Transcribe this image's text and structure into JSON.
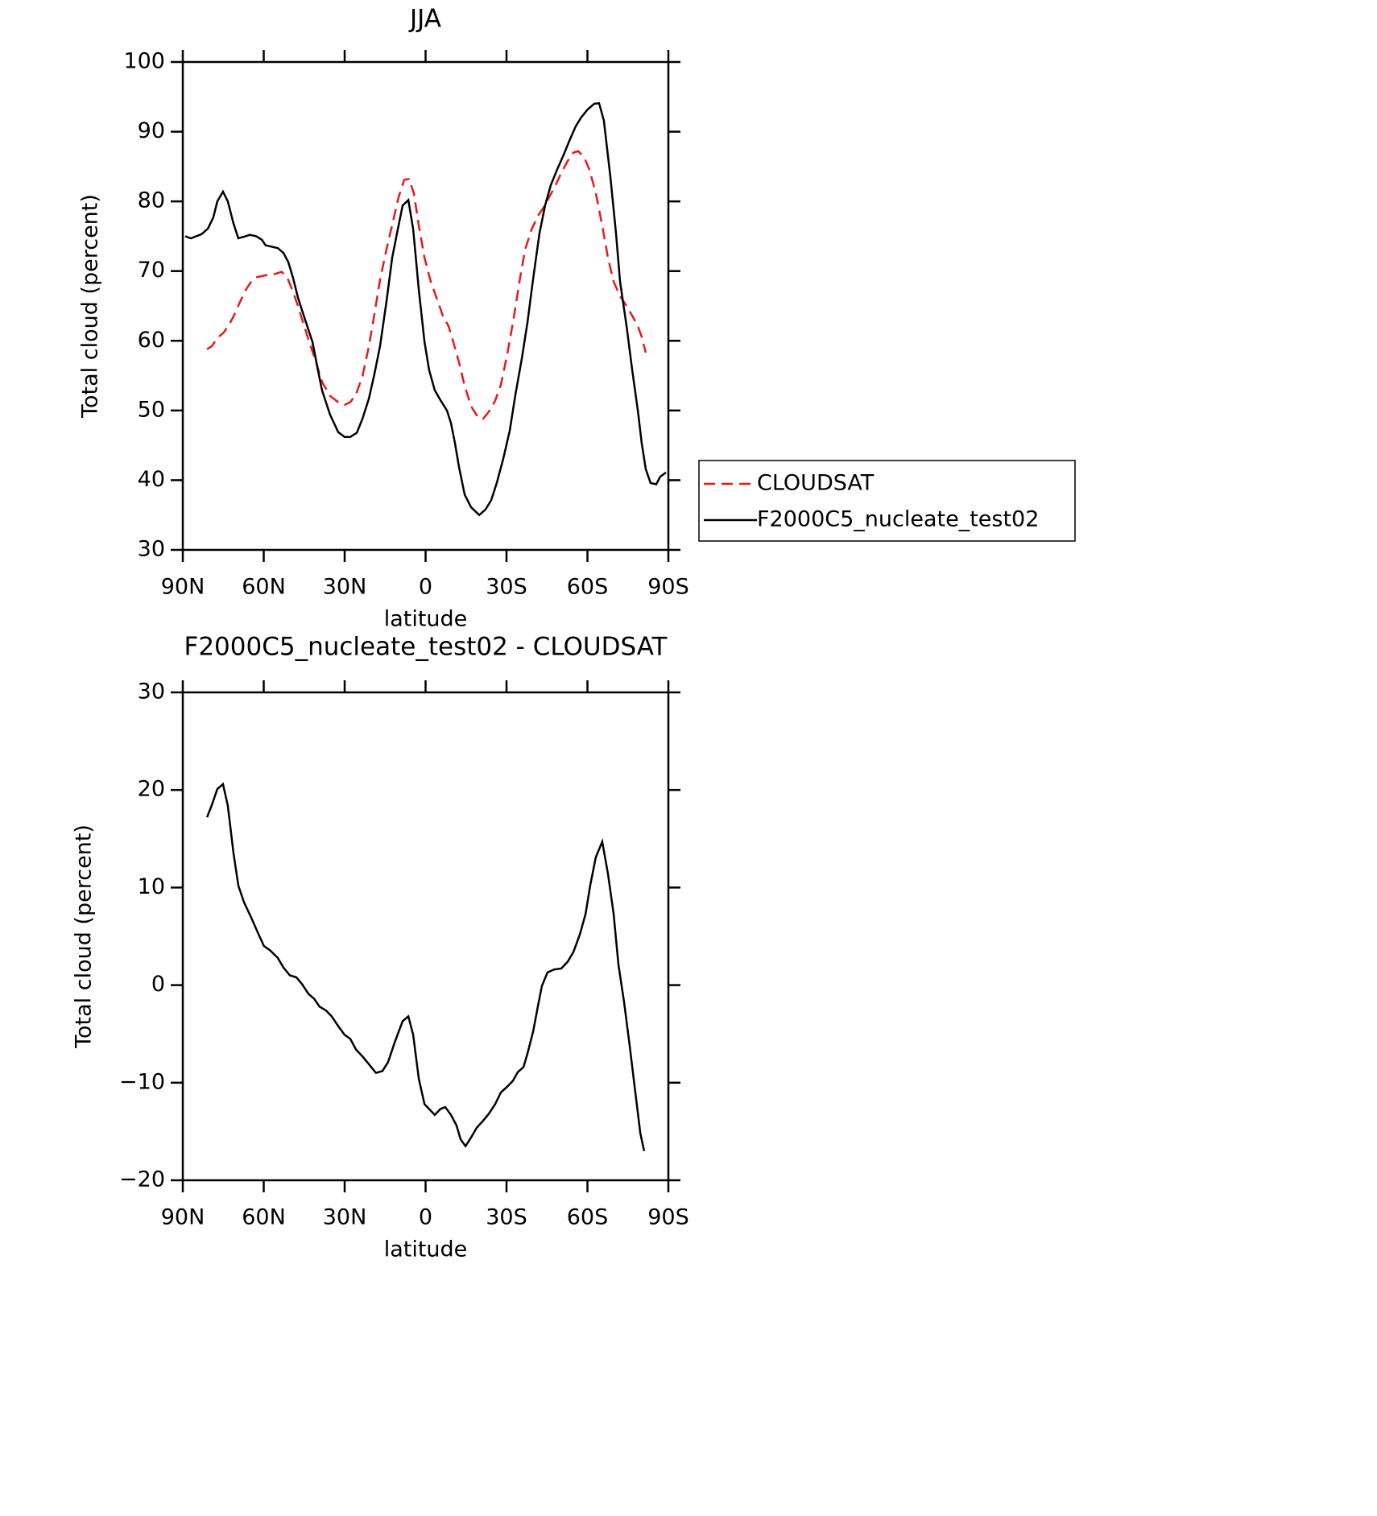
{
  "chart_data": [
    {
      "type": "line",
      "title": "JJA",
      "xlabel": "latitude",
      "ylabel": "Total cloud (percent)",
      "xlim": [
        90,
        -90
      ],
      "xticks": [
        {
          "value": 90,
          "label": "90N"
        },
        {
          "value": 60,
          "label": "60N"
        },
        {
          "value": 30,
          "label": "30N"
        },
        0,
        {
          "value": -30,
          "label": "30S"
        },
        {
          "value": -60,
          "label": "60S"
        },
        {
          "value": -90,
          "label": "90S"
        }
      ],
      "ylim": [
        30,
        100
      ],
      "yticks": [
        30,
        40,
        50,
        60,
        70,
        80,
        90,
        100
      ],
      "legend": "right",
      "series": [
        {
          "name": "CLOUDSAT",
          "color": "#e41a1c",
          "style": "dashed",
          "x": [
            81,
            79.3,
            77.2,
            74.8,
            72.7,
            71.2,
            69.1,
            66.7,
            64.6,
            62.8,
            59.3,
            55.7,
            53.3,
            51.2,
            49.4,
            47.3,
            45.5,
            42.8,
            40.7,
            38.4,
            35.4,
            32.4,
            30,
            27.9,
            25.8,
            23.4,
            21,
            19,
            16.9,
            14.5,
            12.1,
            10,
            7.9,
            6.1,
            4.3,
            2.5,
            0.4,
            -1.9,
            -4.3,
            -6.4,
            -8.5,
            -10.3,
            -12.4,
            -14.5,
            -16.9,
            -19.3,
            -21.3,
            -23.4,
            -25.8,
            -27.9,
            -30.3,
            -32.7,
            -34.8,
            -36.9,
            -39.3,
            -41.6,
            -43.7,
            -45.8,
            -48.2,
            -50.3,
            -52.7,
            -54.8,
            -56.6,
            -58.7,
            -60.7,
            -63.1,
            -65.5,
            -67.6,
            -69.7,
            -72.1,
            -74.5,
            -76.6,
            -78.7,
            -80.1,
            -81.6
          ],
          "values": [
            58.8,
            59.2,
            60.4,
            61.2,
            62.4,
            63.5,
            65.3,
            67.3,
            68.5,
            69.1,
            69.4,
            69.6,
            69.9,
            69,
            67.3,
            65,
            62.7,
            59.5,
            57,
            54.1,
            52.1,
            51.2,
            50.8,
            51.2,
            52.3,
            54.9,
            59.2,
            63.8,
            68.7,
            73.1,
            77.1,
            80.6,
            83.1,
            83.2,
            81.1,
            76.5,
            71.9,
            68.5,
            65.9,
            63.6,
            62.1,
            59.8,
            56.9,
            53.5,
            50.6,
            49.1,
            48.8,
            49.8,
            51.4,
            53.7,
            58.1,
            63.3,
            68.5,
            73.1,
            76,
            77.9,
            79.1,
            80.6,
            82.3,
            84.1,
            85.8,
            87,
            87.2,
            86.4,
            84.6,
            81.2,
            76.5,
            71.9,
            68.5,
            66.4,
            65,
            63.6,
            62.1,
            60.6,
            58.3
          ]
        },
        {
          "name": "F2000C5_nucleate_test02",
          "color": "#000000",
          "style": "solid",
          "x": [
            89.1,
            87,
            83,
            80.7,
            78.7,
            77.2,
            75.1,
            73.3,
            71.2,
            69.4,
            66.7,
            65.2,
            62.8,
            60.7,
            59.3,
            54.8,
            52.7,
            50.9,
            49.1,
            47.3,
            44.9,
            41.9,
            39.9,
            38.4,
            35.4,
            32.4,
            30,
            27.9,
            25.5,
            23.4,
            21,
            19,
            16.9,
            14.5,
            12.4,
            10.3,
            8.5,
            6.4,
            4.6,
            2.5,
            0.4,
            -1.3,
            -3.4,
            -5.5,
            -7.9,
            -9.4,
            -10.9,
            -12.4,
            -14.5,
            -16.9,
            -19.9,
            -22.2,
            -24.3,
            -26.4,
            -28.8,
            -31.2,
            -33.3,
            -35.7,
            -37.8,
            -39.9,
            -42.2,
            -44.3,
            -46.4,
            -48.8,
            -51.2,
            -53.3,
            -55.7,
            -57.8,
            -60.1,
            -62.5,
            -64.3,
            -66.1,
            -68.5,
            -70.6,
            -72.1,
            -74.5,
            -76.6,
            -78.7,
            -80.1,
            -81.6,
            -83.4,
            -85.5,
            -87,
            -89.1
          ],
          "values": [
            75,
            74.7,
            75.3,
            76.1,
            77.7,
            80,
            81.4,
            80,
            76.8,
            74.7,
            75,
            75.2,
            75,
            74.5,
            73.7,
            73.3,
            72.6,
            71.3,
            69,
            66.2,
            63.3,
            59.8,
            55.8,
            52.9,
            49.4,
            46.9,
            46.2,
            46.2,
            46.8,
            48.8,
            51.7,
            55.2,
            59.2,
            65.6,
            71.9,
            76,
            79.4,
            80.2,
            76,
            67.3,
            59.8,
            55.8,
            52.9,
            51.5,
            50,
            48.2,
            45.3,
            41.9,
            37.9,
            36.1,
            35,
            35.8,
            37.1,
            39.6,
            43.1,
            47.1,
            52.3,
            57.5,
            62.7,
            69,
            75.4,
            79.4,
            82.3,
            84.6,
            86.7,
            88.7,
            90.8,
            92.1,
            93.2,
            94,
            94.1,
            91.6,
            83.5,
            75.4,
            68.5,
            62.1,
            55.8,
            50,
            45.4,
            41.6,
            39.6,
            39.4,
            40.5,
            41.1
          ]
        }
      ]
    },
    {
      "type": "line",
      "title": "F2000C5_nucleate_test02 - CLOUDSAT",
      "xlabel": "latitude",
      "ylabel": "Total cloud (percent)",
      "xlim": [
        90,
        -90
      ],
      "xticks": [
        {
          "value": 90,
          "label": "90N"
        },
        {
          "value": 60,
          "label": "60N"
        },
        {
          "value": 30,
          "label": "30N"
        },
        0,
        {
          "value": -30,
          "label": "30S"
        },
        {
          "value": -60,
          "label": "60S"
        },
        {
          "value": -90,
          "label": "90S"
        }
      ],
      "ylim": [
        -20,
        30
      ],
      "yticks": [
        {
          "value": -20,
          "label": "−20"
        },
        {
          "value": -10,
          "label": "−10"
        },
        0,
        10,
        20,
        30
      ],
      "series": [
        {
          "color": "#000000",
          "style": "solid",
          "x": [
            81,
            79.3,
            77.2,
            75.1,
            73.3,
            71.2,
            69.4,
            67.3,
            64.6,
            62.2,
            59.9,
            57.8,
            54.8,
            52.7,
            50.3,
            47.9,
            45.8,
            43.4,
            41.3,
            39.3,
            36.9,
            34.8,
            32.4,
            30,
            27.9,
            25.8,
            23.4,
            21,
            18.4,
            16,
            13.9,
            11.5,
            8.5,
            6.4,
            4.6,
            2.5,
            0.4,
            -1.3,
            -3.4,
            -5.5,
            -7.3,
            -9.4,
            -11.5,
            -13,
            -14.8,
            -16.9,
            -19,
            -21.3,
            -23.4,
            -25.8,
            -27.9,
            -30.3,
            -32.4,
            -34.2,
            -36.3,
            -37.8,
            -39.9,
            -41.6,
            -43.1,
            -45.2,
            -47.6,
            -50.3,
            -52.7,
            -54.8,
            -57.2,
            -59.3,
            -61,
            -63.1,
            -65.5,
            -67.6,
            -69.7,
            -71.5,
            -73.6,
            -75.7,
            -77.5,
            -79.6,
            -81
          ],
          "values": [
            17.2,
            18.4,
            20.1,
            20.6,
            18.4,
            13.5,
            10.2,
            8.5,
            6.9,
            5.4,
            4,
            3.6,
            2.8,
            1.8,
            1,
            0.8,
            0.1,
            -0.9,
            -1.4,
            -2.2,
            -2.6,
            -3.2,
            -4.2,
            -5.1,
            -5.5,
            -6.6,
            -7.3,
            -8.1,
            -9,
            -8.8,
            -7.9,
            -5.9,
            -3.7,
            -3.2,
            -5.1,
            -9.6,
            -12.2,
            -12.7,
            -13.3,
            -12.7,
            -12.5,
            -13.3,
            -14.4,
            -15.8,
            -16.5,
            -15.6,
            -14.6,
            -13.9,
            -13.2,
            -12.2,
            -11,
            -10.4,
            -9.8,
            -8.9,
            -8.4,
            -7,
            -4.7,
            -2.2,
            -0.1,
            1.3,
            1.6,
            1.7,
            2.4,
            3.4,
            5.2,
            7.3,
            10.2,
            13.1,
            14.7,
            11.4,
            7.3,
            2.1,
            -1.8,
            -6.3,
            -10.4,
            -15.2,
            -17
          ]
        }
      ]
    }
  ]
}
